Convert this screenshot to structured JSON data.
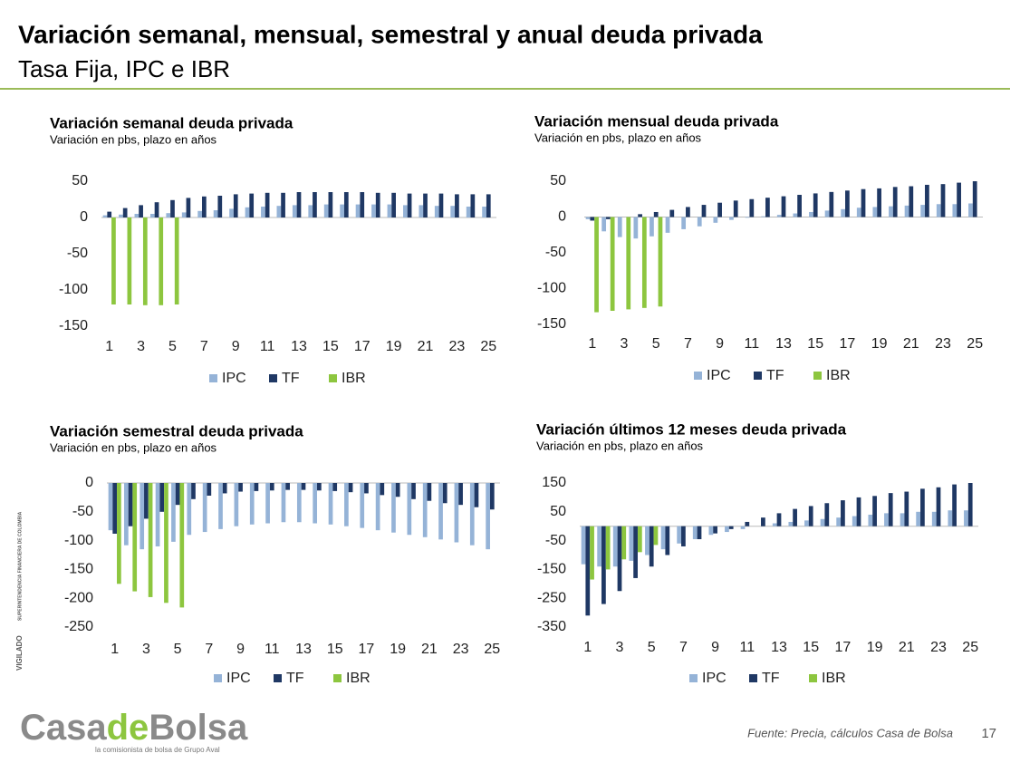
{
  "slide": {
    "title": "Variación semanal, mensual, semestral y anual deuda privada",
    "subtitle": "Tasa Fija, IPC e IBR",
    "source": "Fuente: Precia, cálculos Casa de Bolsa",
    "page": "17",
    "logo": [
      "Casa",
      "de",
      "Bolsa"
    ],
    "tagline": "la comisionista de bolsa de Grupo Aval",
    "vigilado": "VIGILADO",
    "regulator": "SUPERINTENDENCIA FINANCIERA DE COLOMBIA"
  },
  "chart_data": [
    {
      "type": "bar",
      "title": "Variación semanal deuda privada",
      "subtitle": "Variación en pbs, plazo en años",
      "legend": "bottom",
      "grid": false,
      "categories": [
        1,
        null,
        3,
        null,
        5,
        null,
        7,
        null,
        9,
        null,
        11,
        null,
        13,
        null,
        15,
        null,
        17,
        null,
        19,
        null,
        21,
        null,
        23,
        null,
        25
      ],
      "ylim": [
        -150,
        50
      ],
      "yticks": [
        50,
        0,
        -50,
        -100,
        -150
      ],
      "series": [
        {
          "name": "IPC",
          "color": "#95b3d7",
          "values": [
            3,
            4,
            5,
            5,
            6,
            7,
            9,
            10,
            12,
            14,
            15,
            16,
            17,
            17,
            18,
            18,
            18,
            18,
            18,
            17,
            17,
            16,
            16,
            15,
            15
          ]
        },
        {
          "name": "TF",
          "color": "#1f3864",
          "values": [
            8,
            13,
            17,
            21,
            24,
            27,
            29,
            30,
            32,
            33,
            34,
            34,
            35,
            35,
            35,
            35,
            35,
            34,
            34,
            33,
            33,
            33,
            32,
            32,
            32
          ]
        },
        {
          "name": "IBR",
          "color": "#8dc63f",
          "values": [
            -120,
            -120,
            -121,
            -121,
            -120,
            null,
            null,
            null,
            null,
            null,
            null,
            null,
            null,
            null,
            null,
            null,
            null,
            null,
            null,
            null,
            null,
            null,
            null,
            null,
            null
          ]
        }
      ]
    },
    {
      "type": "bar",
      "title": "Variación mensual deuda privada",
      "subtitle": "Variación en pbs, plazo en años",
      "legend": "bottom",
      "grid": false,
      "categories": [
        1,
        null,
        3,
        null,
        5,
        null,
        7,
        null,
        9,
        null,
        11,
        null,
        13,
        null,
        15,
        null,
        17,
        null,
        19,
        null,
        21,
        null,
        23,
        null,
        25
      ],
      "ylim": [
        -150,
        50
      ],
      "yticks": [
        50,
        0,
        -50,
        -100,
        -150
      ],
      "series": [
        {
          "name": "IPC",
          "color": "#95b3d7",
          "values": [
            -3,
            -20,
            -28,
            -30,
            -27,
            -22,
            -17,
            -13,
            -8,
            -4,
            -1,
            1,
            3,
            5,
            7,
            9,
            11,
            13,
            14,
            15,
            16,
            17,
            18,
            18,
            19
          ]
        },
        {
          "name": "TF",
          "color": "#1f3864",
          "values": [
            -5,
            -3,
            0,
            4,
            7,
            10,
            14,
            17,
            20,
            23,
            25,
            27,
            29,
            31,
            33,
            35,
            37,
            39,
            40,
            42,
            43,
            45,
            46,
            48,
            50
          ]
        },
        {
          "name": "IBR",
          "color": "#8dc63f",
          "values": [
            -133,
            -131,
            -129,
            -127,
            -125,
            null,
            null,
            null,
            null,
            null,
            null,
            null,
            null,
            null,
            null,
            null,
            null,
            null,
            null,
            null,
            null,
            null,
            null,
            null,
            null
          ]
        }
      ]
    },
    {
      "type": "bar",
      "title": "Variación semestral deuda privada",
      "subtitle": "Variación en pbs, plazo en años",
      "legend": "bottom",
      "grid": false,
      "categories": [
        1,
        null,
        3,
        null,
        5,
        null,
        7,
        null,
        9,
        null,
        11,
        null,
        13,
        null,
        15,
        null,
        17,
        null,
        19,
        null,
        21,
        null,
        23,
        null,
        25
      ],
      "ylim": [
        -250,
        0
      ],
      "yticks": [
        0,
        -50,
        -100,
        -150,
        -200,
        -250
      ],
      "series": [
        {
          "name": "IPC",
          "color": "#95b3d7",
          "values": [
            -82,
            -108,
            -115,
            -110,
            -102,
            -90,
            -85,
            -80,
            -75,
            -72,
            -70,
            -68,
            -68,
            -70,
            -72,
            -75,
            -78,
            -82,
            -86,
            -90,
            -94,
            -98,
            -103,
            -108,
            -115
          ]
        },
        {
          "name": "TF",
          "color": "#1f3864",
          "values": [
            -88,
            -75,
            -62,
            -50,
            -38,
            -28,
            -22,
            -18,
            -15,
            -14,
            -13,
            -12,
            -12,
            -13,
            -14,
            -16,
            -18,
            -21,
            -24,
            -28,
            -31,
            -35,
            -38,
            -42,
            -46
          ]
        },
        {
          "name": "IBR",
          "color": "#8dc63f",
          "values": [
            -175,
            -188,
            -198,
            -208,
            -216,
            null,
            null,
            null,
            null,
            null,
            null,
            null,
            null,
            null,
            null,
            null,
            null,
            null,
            null,
            null,
            null,
            null,
            null,
            null,
            null
          ]
        }
      ]
    },
    {
      "type": "bar",
      "title": "Variación últimos 12 meses deuda privada",
      "subtitle": "Variación en pbs, plazo en años",
      "legend": "bottom",
      "grid": false,
      "categories": [
        1,
        null,
        3,
        null,
        5,
        null,
        7,
        null,
        9,
        null,
        11,
        null,
        13,
        null,
        15,
        null,
        17,
        null,
        19,
        null,
        21,
        null,
        23,
        null,
        25
      ],
      "ylim": [
        -350,
        150
      ],
      "yticks": [
        150,
        50,
        -50,
        -150,
        -250,
        -350
      ],
      "series": [
        {
          "name": "IPC",
          "color": "#95b3d7",
          "values": [
            -132,
            -140,
            -140,
            -120,
            -100,
            -80,
            -60,
            -45,
            -30,
            -20,
            -10,
            0,
            10,
            15,
            20,
            25,
            30,
            35,
            40,
            45,
            45,
            50,
            50,
            55,
            55
          ]
        },
        {
          "name": "TF",
          "color": "#1f3864",
          "values": [
            -310,
            -270,
            -225,
            -180,
            -140,
            -100,
            -70,
            -45,
            -25,
            -10,
            15,
            30,
            45,
            60,
            70,
            80,
            90,
            100,
            105,
            115,
            120,
            130,
            135,
            145,
            150
          ]
        },
        {
          "name": "IBR",
          "color": "#8dc63f",
          "values": [
            -185,
            -150,
            -115,
            -90,
            -65,
            null,
            null,
            null,
            null,
            null,
            null,
            null,
            null,
            null,
            null,
            null,
            null,
            null,
            null,
            null,
            null,
            null,
            null,
            null,
            null
          ]
        }
      ]
    }
  ]
}
